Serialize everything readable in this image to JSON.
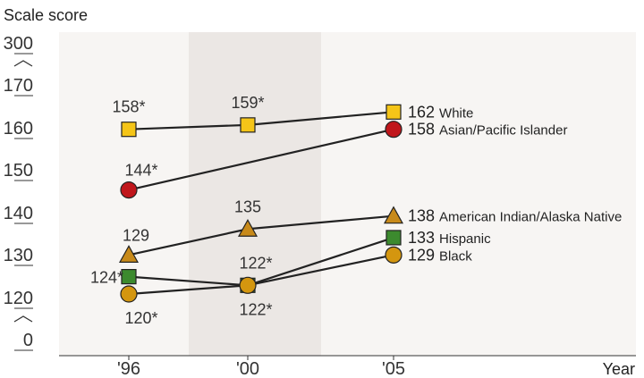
{
  "chart_data": {
    "type": "line",
    "title": "",
    "ylabel": "Scale score",
    "xlabel": "Year",
    "x": [
      "'96",
      "'00",
      "'05"
    ],
    "y_ticks": [
      "300",
      "170",
      "160",
      "150",
      "140",
      "130",
      "120",
      "0"
    ],
    "ylim": [
      115,
      172
    ],
    "y_axis_break": true,
    "shaded_period": "'00",
    "grid": false,
    "colors": {
      "background": "#f7f5f3",
      "shaded": "#ebe7e4",
      "line": "#222222",
      "White": "#f5c518",
      "Asian/Pacific Islander": "#c0161b",
      "American Indian/Alaska Native": "#c88a1a",
      "Hispanic": "#3c8a2e",
      "Black": "#d4960f"
    },
    "series": [
      {
        "name": "White",
        "marker": "square",
        "values": [
          158,
          159,
          162
        ],
        "labels": [
          "158*",
          "159*",
          "162"
        ]
      },
      {
        "name": "Asian/Pacific Islander",
        "marker": "circle",
        "values": [
          144,
          null,
          158
        ],
        "labels": [
          "144*",
          "",
          "158"
        ]
      },
      {
        "name": "American Indian/Alaska Native",
        "marker": "triangle",
        "values": [
          129,
          135,
          138
        ],
        "labels": [
          "129",
          "135",
          "138"
        ]
      },
      {
        "name": "Hispanic",
        "marker": "square",
        "values": [
          124,
          122,
          133
        ],
        "labels": [
          "124*",
          "122*",
          "133"
        ]
      },
      {
        "name": "Black",
        "marker": "circle",
        "values": [
          120,
          122,
          129
        ],
        "labels": [
          "120*",
          "122*",
          "129"
        ]
      }
    ]
  }
}
